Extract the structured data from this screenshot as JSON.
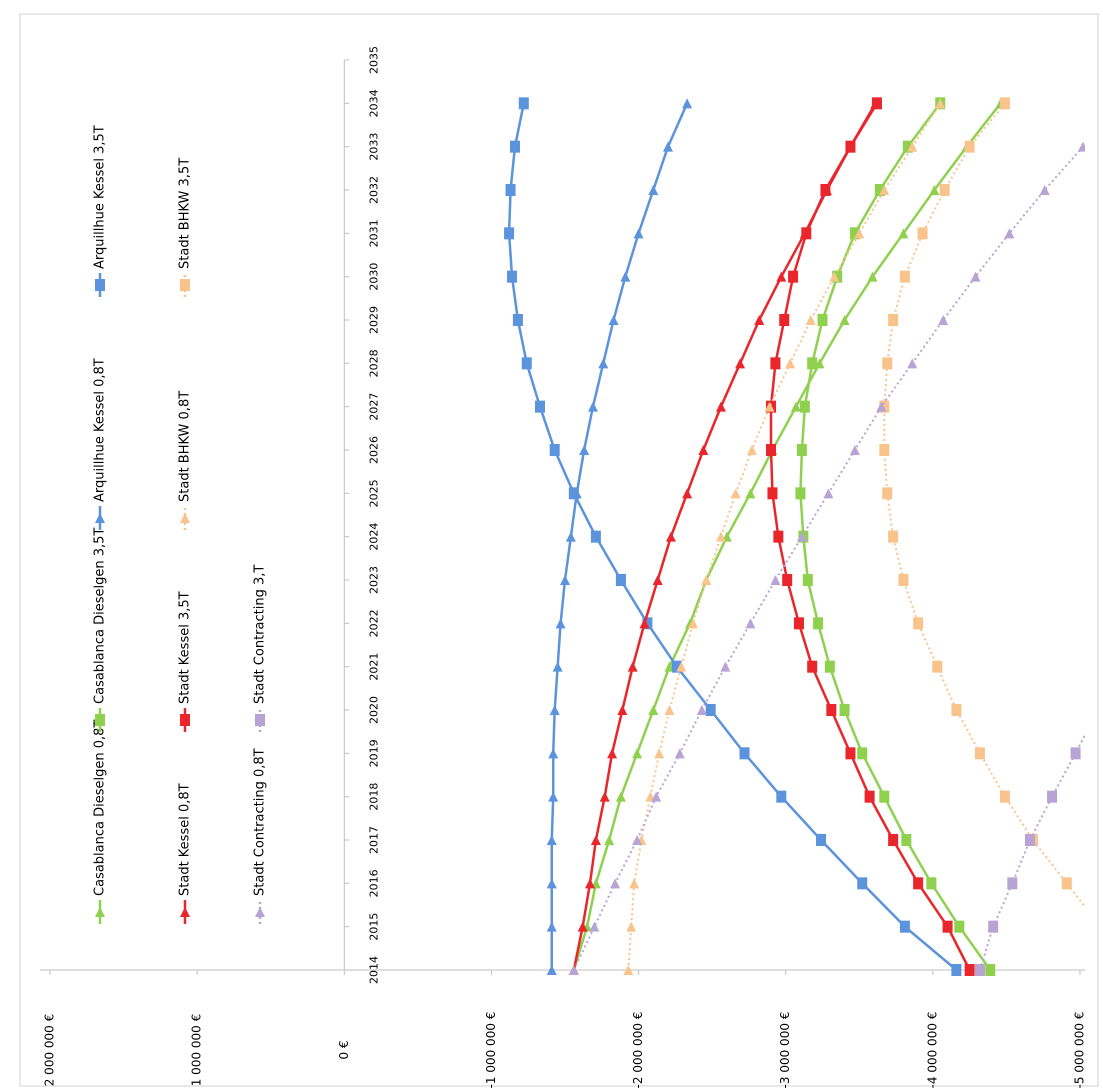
{
  "chart_data": {
    "type": "line",
    "x": [
      2014,
      2015,
      2016,
      2017,
      2018,
      2019,
      2020,
      2021,
      2022,
      2023,
      2024,
      2025,
      2026,
      2027,
      2028,
      2029,
      2030,
      2031,
      2032,
      2033,
      2034
    ],
    "xlim": [
      2014,
      2035
    ],
    "xticks": [
      2014,
      2015,
      2016,
      2017,
      2018,
      2019,
      2020,
      2021,
      2022,
      2023,
      2024,
      2025,
      2026,
      2027,
      2028,
      2029,
      2030,
      2031,
      2032,
      2033,
      2034,
      2035
    ],
    "ylim": [
      -5000000,
      2000000
    ],
    "yticks": [
      {
        "value": -5000000,
        "label": "-5 000 000 €"
      },
      {
        "value": -4000000,
        "label": "-4 000 000 €"
      },
      {
        "value": -3000000,
        "label": "-3 000 000 €"
      },
      {
        "value": -2000000,
        "label": "-2 000 000 €"
      },
      {
        "value": -1000000,
        "label": "-1 000 000 €"
      },
      {
        "value": 0,
        "label": "0 €"
      },
      {
        "value": 1000000,
        "label": "1 000 000 €"
      },
      {
        "value": 2000000,
        "label": "2 000 000 €"
      }
    ],
    "rotated": true,
    "series": [
      {
        "name": "Casablanca Dieselgen 0,8T",
        "color": "#8fd14f",
        "marker": "triangle",
        "dotted": false,
        "values": [
          -1560000,
          -1650000,
          -1710000,
          -1800000,
          -1880000,
          -1990000,
          -2100000,
          -2210000,
          -2350000,
          -2460000,
          -2600000,
          -2760000,
          -2910000,
          -3070000,
          -3230000,
          -3400000,
          -3590000,
          -3800000,
          -4010000,
          -4230000,
          -4460000
        ]
      },
      {
        "name": "Casablanca Dieselgen 3,5T",
        "color": "#8fd14f",
        "marker": "square",
        "dotted": false,
        "values": [
          -4390000,
          -4180000,
          -3990000,
          -3820000,
          -3670000,
          -3520000,
          -3400000,
          -3300000,
          -3220000,
          -3150000,
          -3120000,
          -3100000,
          -3110000,
          -3130000,
          -3180000,
          -3250000,
          -3350000,
          -3470000,
          -3640000,
          -3830000,
          -4050000
        ]
      },
      {
        "name": "Arquillhue Kessel 0,8T",
        "color": "#5b93dc",
        "marker": "triangle",
        "dotted": false,
        "values": [
          -1410000,
          -1410000,
          -1410000,
          -1410000,
          -1420000,
          -1420000,
          -1430000,
          -1450000,
          -1470000,
          -1500000,
          -1540000,
          -1580000,
          -1630000,
          -1690000,
          -1760000,
          -1830000,
          -1910000,
          -2000000,
          -2100000,
          -2200000,
          -2330000
        ]
      },
      {
        "name": "Arquillhue Kessel 3,5T",
        "color": "#5b93dc",
        "marker": "square",
        "dotted": false,
        "values": [
          -4160000,
          -3810000,
          -3520000,
          -3240000,
          -2970000,
          -2720000,
          -2490000,
          -2260000,
          -2060000,
          -1880000,
          -1710000,
          -1560000,
          -1430000,
          -1330000,
          -1240000,
          -1180000,
          -1140000,
          -1120000,
          -1130000,
          -1160000,
          -1220000
        ]
      },
      {
        "name": "Stadt Kessel 0,8T",
        "color": "#e8262b",
        "marker": "triangle",
        "dotted": false,
        "values": [
          -1560000,
          -1620000,
          -1670000,
          -1710000,
          -1770000,
          -1820000,
          -1890000,
          -1960000,
          -2040000,
          -2130000,
          -2220000,
          -2330000,
          -2440000,
          -2560000,
          -2690000,
          -2820000,
          -2970000,
          -3130000,
          -3280000,
          -3440000,
          -3610000
        ]
      },
      {
        "name": "Stadt Kessel 3,5T",
        "color": "#e8262b",
        "marker": "square",
        "dotted": false,
        "values": [
          -4250000,
          -4100000,
          -3900000,
          -3730000,
          -3570000,
          -3440000,
          -3310000,
          -3180000,
          -3090000,
          -3010000,
          -2950000,
          -2910000,
          -2900000,
          -2900000,
          -2930000,
          -2990000,
          -3050000,
          -3140000,
          -3270000,
          -3440000,
          -3620000
        ]
      },
      {
        "name": "Stadt BHKW 0,8T",
        "color": "#f9c48c",
        "marker": "triangle",
        "dotted": true,
        "values": [
          -1930000,
          -1950000,
          -1970000,
          -2020000,
          -2080000,
          -2140000,
          -2210000,
          -2290000,
          -2370000,
          -2460000,
          -2560000,
          -2660000,
          -2770000,
          -2890000,
          -3030000,
          -3170000,
          -3330000,
          -3500000,
          -3670000,
          -3860000,
          -4050000
        ]
      },
      {
        "name": "Stadt BHKW 3,5T",
        "color": "#f9c48c",
        "marker": "square",
        "dotted": true,
        "values": [
          -5400000,
          -5140000,
          -4910000,
          -4680000,
          -4490000,
          -4320000,
          -4160000,
          -4030000,
          -3900000,
          -3800000,
          -3730000,
          -3690000,
          -3670000,
          -3670000,
          -3690000,
          -3730000,
          -3810000,
          -3930000,
          -4080000,
          -4250000,
          -4490000
        ]
      },
      {
        "name": "Stadt Contracting 0,8T",
        "color": "#b8a4d4",
        "marker": "triangle",
        "dotted": true,
        "values": [
          -1560000,
          -1700000,
          -1840000,
          -1990000,
          -2120000,
          -2280000,
          -2430000,
          -2590000,
          -2760000,
          -2930000,
          -3110000,
          -3290000,
          -3470000,
          -3650000,
          -3860000,
          -4070000,
          -4290000,
          -4520000,
          -4760000,
          -5020000,
          -5280000
        ]
      },
      {
        "name": "Stadt Contracting 3,T",
        "color": "#b8a4d4",
        "marker": "square",
        "dotted": true,
        "values": [
          -4320000,
          -4410000,
          -4540000,
          -4660000,
          -4810000,
          -4970000,
          -5120000,
          null,
          null,
          null,
          null,
          null,
          null,
          null,
          null,
          null,
          null,
          null,
          null,
          null,
          null
        ]
      }
    ]
  }
}
